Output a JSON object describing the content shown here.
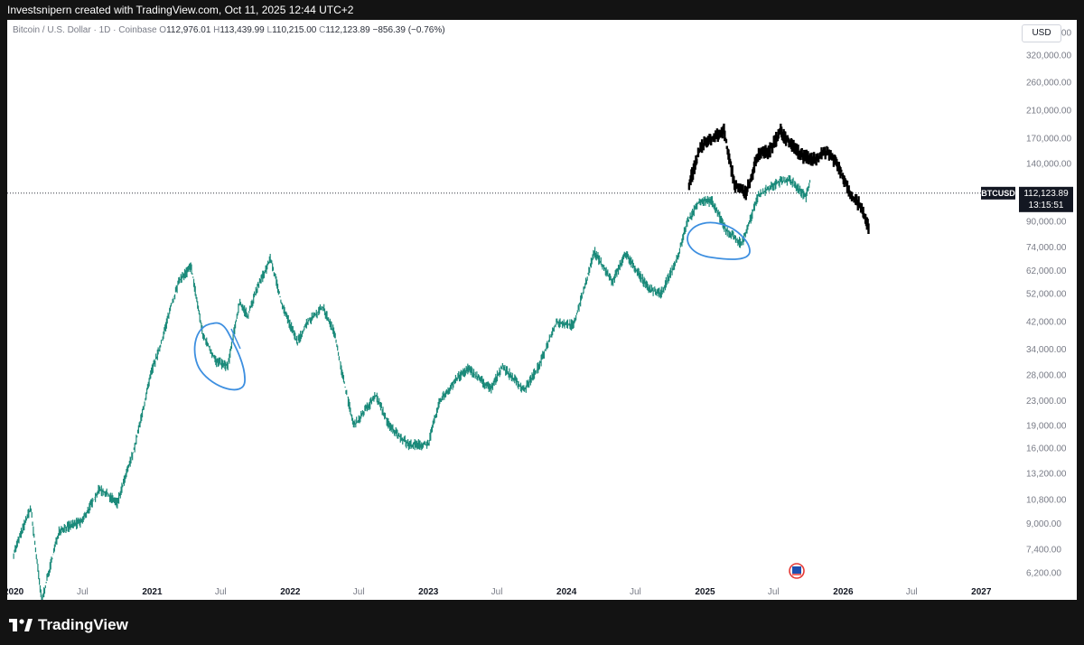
{
  "header": {
    "text": "Investsnipern created with TradingView.com, Oct 11, 2025 12:44 UTC+2"
  },
  "legend": {
    "symbol": "Bitcoin / U.S. Dollar · 1D · Coinbase",
    "open_label": "O",
    "open": "112,976.01",
    "high_label": "H",
    "high": "113,439.99",
    "low_label": "L",
    "low": "110,215.00",
    "close_label": "C",
    "close": "112,123.89",
    "change": "−856.39 (−0.76%)"
  },
  "currency_button": "USD",
  "price_tag": {
    "ticker": "BTCUSD",
    "price": "112,123.89",
    "countdown": "13:15:51"
  },
  "footer": {
    "brand": "TradingView"
  },
  "colors": {
    "candles": "#1b8a7a",
    "overlay": "#000000",
    "annotation": "#3d8fe0",
    "text": "#787b86"
  },
  "chart_data": {
    "type": "line",
    "title": "Bitcoin / U.S. Dollar · 1D · Coinbase",
    "scale": "log",
    "ylim": [
      5800,
      420000
    ],
    "xlim": [
      "2019-12-15",
      "2027-04-01"
    ],
    "y_ticks": [
      "380,000.00",
      "320,000.00",
      "260,000.00",
      "210,000.00",
      "170,000.00",
      "140,000.00",
      "90,000.00",
      "74,000.00",
      "62,000.00",
      "52,000.00",
      "42,000.00",
      "34,000.00",
      "28,000.00",
      "23,000.00",
      "19,000.00",
      "16,000.00",
      "13,200.00",
      "10,800.00",
      "9,000.00",
      "7,400.00",
      "6,200.00"
    ],
    "x_ticks": [
      "2020",
      "Jul",
      "2021",
      "Jul",
      "2022",
      "Jul",
      "2023",
      "Jul",
      "2024",
      "Jul",
      "2025",
      "Jul",
      "2026",
      "Jul",
      "2027"
    ],
    "series": [
      {
        "name": "BTCUSD",
        "x": [
          "2020-01-01",
          "2020-02-15",
          "2020-03-15",
          "2020-04-30",
          "2020-06-30",
          "2020-08-15",
          "2020-10-01",
          "2020-11-15",
          "2020-12-31",
          "2021-01-20",
          "2021-02-21",
          "2021-03-15",
          "2021-04-14",
          "2021-05-15",
          "2021-06-20",
          "2021-07-20",
          "2021-08-20",
          "2021-09-10",
          "2021-10-10",
          "2021-11-10",
          "2021-12-10",
          "2022-01-20",
          "2022-02-15",
          "2022-03-28",
          "2022-04-30",
          "2022-05-15",
          "2022-06-18",
          "2022-08-15",
          "2022-09-20",
          "2022-11-10",
          "2022-12-31",
          "2023-01-31",
          "2023-03-20",
          "2023-04-15",
          "2023-06-15",
          "2023-07-15",
          "2023-09-11",
          "2023-10-20",
          "2023-12-05",
          "2024-01-20",
          "2024-02-28",
          "2024-03-14",
          "2024-05-01",
          "2024-06-05",
          "2024-08-05",
          "2024-09-06",
          "2024-10-20",
          "2024-11-12",
          "2024-12-17",
          "2025-01-20",
          "2025-02-25",
          "2025-04-08",
          "2025-05-22",
          "2025-07-14",
          "2025-08-14",
          "2025-09-25",
          "2025-10-06"
        ],
        "y": [
          7200,
          10200,
          5000,
          8600,
          9200,
          11800,
          10600,
          16000,
          29000,
          34000,
          48000,
          58000,
          64000,
          38000,
          31000,
          30000,
          49000,
          44000,
          56000,
          68000,
          48000,
          36000,
          42000,
          47000,
          38000,
          29500,
          19000,
          24000,
          19000,
          16500,
          16500,
          23000,
          27500,
          29500,
          25200,
          30000,
          25000,
          30000,
          42000,
          41000,
          61000,
          72000,
          57000,
          71000,
          54000,
          52000,
          68000,
          88000,
          106000,
          105000,
          85000,
          76000,
          110000,
          122000,
          124000,
          109000,
          125000
        ]
      },
      {
        "name": "overlay",
        "x": [
          "2024-11-20",
          "2024-12-20",
          "2025-01-20",
          "2025-02-20",
          "2025-03-20",
          "2025-04-20",
          "2025-05-20",
          "2025-06-20",
          "2025-07-20",
          "2025-08-20",
          "2025-09-20",
          "2025-10-20",
          "2025-11-20",
          "2025-12-20",
          "2026-01-20",
          "2026-02-20",
          "2026-03-10"
        ],
        "y": [
          120000,
          160000,
          170000,
          180000,
          120000,
          112000,
          150000,
          155000,
          180000,
          160000,
          148000,
          145000,
          155000,
          138000,
          112000,
          100000,
          85000
        ]
      }
    ]
  }
}
